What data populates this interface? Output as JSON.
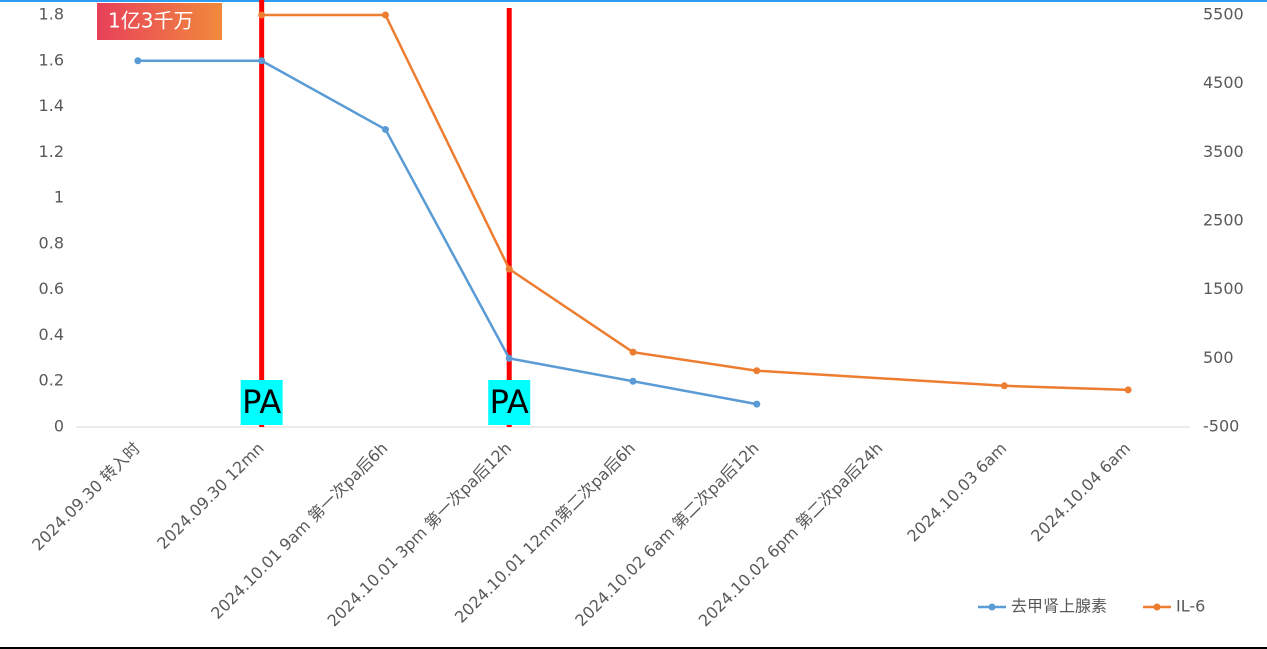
{
  "chart_data": {
    "type": "line",
    "categories": [
      "2024.09.30 转入时",
      "2024.09.30 12mn",
      "2024.10.01 9am 第一次pa后6h",
      "2024.10.01 3pm 第一次pa后12h",
      "2024.10.01 12mn第二次pa后6h",
      "2024.10.02 6am 第二次pa后12h",
      "2024.10.02 6pm 第二次pa后24h",
      "2024.10.03 6am",
      "2024.10.04 6am"
    ],
    "series": [
      {
        "name": "去甲肾上腺素",
        "color": "#5b9bd5",
        "values": [
          1.6,
          1.6,
          1.3,
          0.3,
          0.2,
          0.1,
          null,
          null,
          null
        ]
      },
      {
        "name": "IL-6",
        "color": "#ed7d31",
        "axis": "y2",
        "values": [
          null,
          5500,
          5500,
          1800,
          590,
          320,
          null,
          100,
          40
        ]
      }
    ],
    "ylim": [
      0,
      1.8
    ],
    "yticks": [
      0,
      0.2,
      0.4,
      0.6,
      0.8,
      1,
      1.2,
      1.4,
      1.6,
      1.8
    ],
    "y2lim": [
      -500,
      5500
    ],
    "y2ticks": [
      -500,
      500,
      1500,
      2500,
      3500,
      4500,
      5500
    ],
    "legend": "bottom-right",
    "markers": [
      {
        "label": "PA",
        "at": "2024.09.30 12mn",
        "color": "#ff0000"
      },
      {
        "label": "PA",
        "at": "2024.10.01 3pm 第一次pa后12h",
        "color": "#ff0000"
      }
    ],
    "annotations": [
      {
        "text": "1亿3千万",
        "at": "2024.09.30 转入时"
      }
    ]
  }
}
